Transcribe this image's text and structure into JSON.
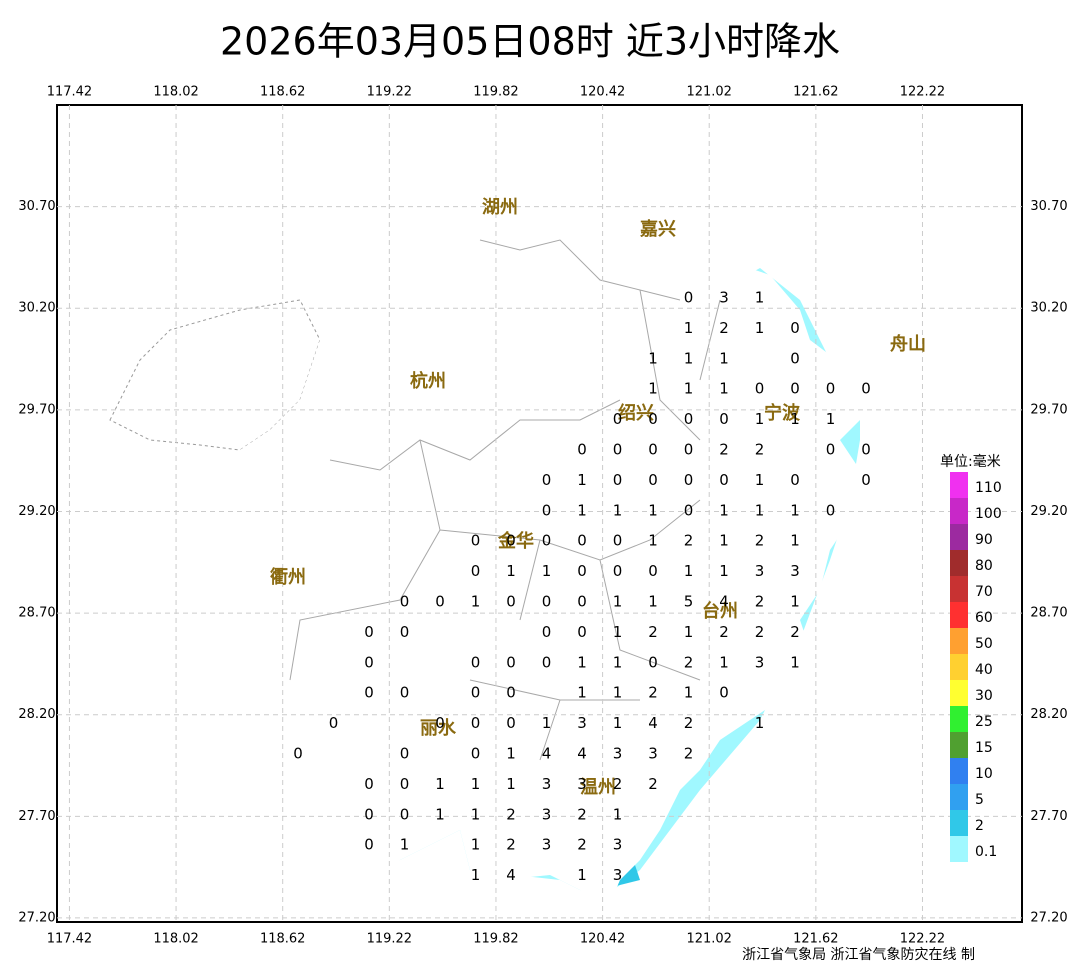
{
  "map": {
    "title": "2026年03月05日08时 近3小时降水",
    "credit": "浙江省气象局 浙江省气象防灾在线 制",
    "xlim": [
      117.35,
      122.78
    ],
    "ylim": [
      27.18,
      31.2
    ],
    "xticks": [
      117.42,
      118.02,
      118.62,
      119.22,
      119.82,
      120.42,
      121.02,
      121.62,
      122.22
    ],
    "yticks": [
      {
        "value": 27.2,
        "label": "27.20"
      },
      {
        "value": 27.7,
        "label": "27.70"
      },
      {
        "value": 28.2,
        "label": "28.20"
      },
      {
        "value": 28.7,
        "label": "28.70"
      },
      {
        "value": 29.2,
        "label": "29.20"
      },
      {
        "value": 29.7,
        "label": "29.70"
      },
      {
        "value": 30.2,
        "label": "30.20"
      },
      {
        "value": 30.7,
        "label": "30.70"
      }
    ],
    "grid": true,
    "cities": [
      "湖州",
      "嘉兴",
      "杭州",
      "绍兴",
      "宁波",
      "舟山",
      "金华",
      "衢州",
      "台州",
      "丽水",
      "温州"
    ],
    "legend": {
      "title": "单位:毫米",
      "items": [
        {
          "label": 110,
          "color": "#f030f0"
        },
        {
          "label": 100,
          "color": "#c828c8"
        },
        {
          "label": 90,
          "color": "#9c2aa0"
        },
        {
          "label": 80,
          "color": "#a02c2c"
        },
        {
          "label": 70,
          "color": "#c83232"
        },
        {
          "label": 60,
          "color": "#ff3030"
        },
        {
          "label": 50,
          "color": "#ffa030"
        },
        {
          "label": 40,
          "color": "#ffd030"
        },
        {
          "label": 30,
          "color": "#ffff30"
        },
        {
          "label": 25,
          "color": "#30f030"
        },
        {
          "label": 15,
          "color": "#50a030"
        },
        {
          "label": 10,
          "color": "#3080f0"
        },
        {
          "label": 5,
          "color": "#30a0f0"
        },
        {
          "label": 2,
          "color": "#30c8e8"
        },
        {
          "label": 0.1,
          "color": "#a0f8ff"
        }
      ]
    },
    "stations": [
      [
        null,
        null,
        null,
        null,
        null,
        null,
        null,
        null,
        null,
        null,
        null,
        0,
        3,
        1,
        null,
        null,
        null
      ],
      [
        null,
        null,
        null,
        null,
        null,
        null,
        null,
        null,
        null,
        null,
        null,
        1,
        2,
        1,
        0,
        null,
        null
      ],
      [
        null,
        null,
        null,
        null,
        null,
        null,
        null,
        null,
        null,
        null,
        1,
        1,
        1,
        null,
        0,
        null,
        null
      ],
      [
        null,
        null,
        null,
        null,
        null,
        null,
        null,
        null,
        null,
        null,
        1,
        1,
        1,
        0,
        0,
        0,
        0
      ],
      [
        null,
        null,
        null,
        null,
        null,
        null,
        null,
        null,
        null,
        0,
        0,
        0,
        0,
        1,
        1,
        1,
        null
      ],
      [
        null,
        null,
        null,
        null,
        null,
        null,
        null,
        null,
        0,
        0,
        0,
        0,
        2,
        2,
        null,
        0,
        0
      ],
      [
        null,
        null,
        null,
        null,
        null,
        null,
        null,
        0,
        1,
        0,
        0,
        0,
        0,
        1,
        0,
        null,
        0
      ],
      [
        null,
        null,
        null,
        null,
        null,
        null,
        null,
        0,
        1,
        1,
        1,
        0,
        1,
        1,
        1,
        0,
        null
      ],
      [
        null,
        null,
        null,
        null,
        null,
        0,
        0,
        0,
        0,
        0,
        1,
        2,
        1,
        2,
        1,
        null,
        null
      ],
      [
        null,
        null,
        null,
        null,
        null,
        0,
        1,
        1,
        0,
        0,
        0,
        1,
        1,
        3,
        3,
        null,
        null
      ],
      [
        null,
        null,
        null,
        0,
        0,
        1,
        0,
        0,
        0,
        1,
        1,
        5,
        4,
        2,
        1,
        null,
        null
      ],
      [
        null,
        null,
        0,
        0,
        null,
        null,
        null,
        0,
        0,
        1,
        2,
        1,
        2,
        2,
        2,
        null,
        null
      ],
      [
        null,
        null,
        0,
        null,
        null,
        0,
        0,
        0,
        1,
        1,
        0,
        2,
        1,
        3,
        1,
        null,
        null
      ],
      [
        null,
        null,
        0,
        0,
        null,
        0,
        0,
        null,
        1,
        1,
        2,
        1,
        0,
        null,
        null,
        null,
        null
      ],
      [
        null,
        0,
        null,
        null,
        0,
        0,
        0,
        1,
        3,
        1,
        4,
        2,
        null,
        1,
        null,
        null,
        null
      ],
      [
        0,
        null,
        null,
        0,
        null,
        0,
        1,
        4,
        4,
        3,
        3,
        2,
        null,
        null,
        null,
        null,
        null
      ],
      [
        null,
        null,
        0,
        0,
        1,
        1,
        1,
        3,
        3,
        2,
        2,
        null,
        null,
        null,
        null,
        null,
        null
      ],
      [
        null,
        null,
        0,
        0,
        1,
        1,
        2,
        3,
        2,
        1,
        null,
        null,
        null,
        null,
        null,
        null,
        null
      ],
      [
        null,
        null,
        0,
        1,
        null,
        1,
        2,
        3,
        2,
        3,
        null,
        null,
        null,
        null,
        null,
        null,
        null
      ],
      [
        null,
        null,
        null,
        null,
        null,
        1,
        4,
        null,
        1,
        3,
        null,
        null,
        null,
        null,
        null,
        null,
        null
      ]
    ]
  }
}
